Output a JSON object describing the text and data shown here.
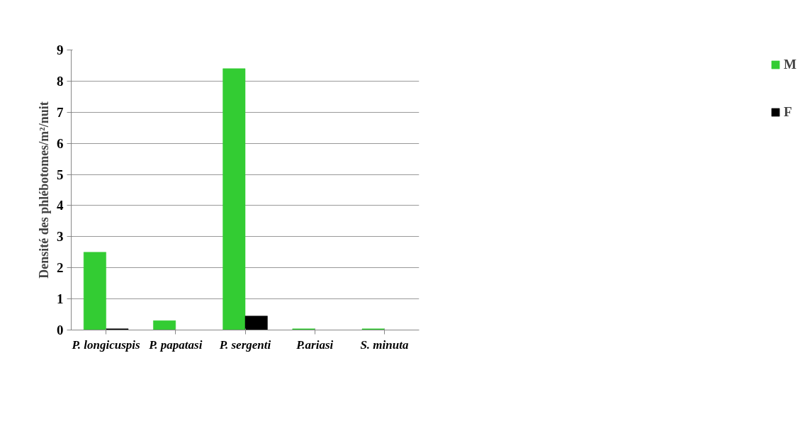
{
  "chart_data": {
    "type": "bar",
    "ylabel": "Densité des phlébotomes/m²/nuit",
    "categories": [
      "P. longicuspis",
      "P. papatasi",
      "P. sergenti",
      "P.ariasi",
      "S. minuta"
    ],
    "series": [
      {
        "name": "M",
        "color": "#33cc33",
        "values": [
          2.5,
          0.3,
          8.4,
          0.04,
          0.04
        ]
      },
      {
        "name": "F",
        "color": "#000000",
        "values": [
          0.04,
          0,
          0.45,
          0,
          0
        ]
      }
    ],
    "ylim": [
      0,
      9
    ],
    "yticks": [
      0,
      1,
      2,
      3,
      4,
      5,
      6,
      7,
      8,
      9
    ],
    "grid": "y",
    "legend": "right"
  }
}
